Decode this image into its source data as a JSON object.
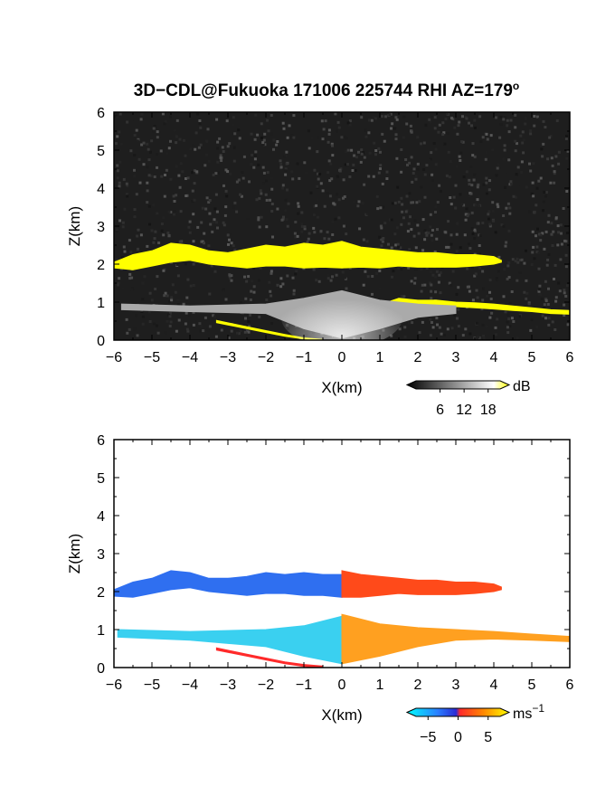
{
  "chart_data": [
    {
      "type": "heatmap",
      "title": "3D−CDL@Fukuoka 171006 225744 RHI AZ=179",
      "title_superscript": "o",
      "xlabel": "X(km)",
      "ylabel": "Z(km)",
      "xlim": [
        -6,
        6
      ],
      "ylim": [
        0,
        6
      ],
      "x_ticks": [
        "−6",
        "−5",
        "−4",
        "−3",
        "−2",
        "−1",
        "0",
        "1",
        "2",
        "3",
        "4",
        "5",
        "6"
      ],
      "y_ticks": [
        "0",
        "1",
        "2",
        "3",
        "4",
        "5",
        "6"
      ],
      "background_color": "#1e1e1e",
      "colorbar": {
        "unit": "dB",
        "ticks": [
          "6",
          "12",
          "18"
        ],
        "range": [
          0,
          21
        ],
        "colors": [
          "#000000",
          "#ffffff",
          "#ffff00"
        ]
      },
      "features": [
        {
          "name": "upper-layer",
          "value_db": 20,
          "color": "#ffff00",
          "top": [
            [
              -6,
              2.05
            ],
            [
              -5.5,
              2.25
            ],
            [
              -5,
              2.35
            ],
            [
              -4.5,
              2.55
            ],
            [
              -4,
              2.5
            ],
            [
              -3.5,
              2.35
            ],
            [
              -3,
              2.3
            ],
            [
              -2.5,
              2.4
            ],
            [
              -2,
              2.5
            ],
            [
              -1.5,
              2.45
            ],
            [
              -1,
              2.55
            ],
            [
              -0.5,
              2.5
            ],
            [
              0,
              2.6
            ],
            [
              0.5,
              2.45
            ],
            [
              1,
              2.4
            ],
            [
              1.5,
              2.35
            ],
            [
              2,
              2.3
            ],
            [
              2.5,
              2.3
            ],
            [
              3,
              2.25
            ],
            [
              3.5,
              2.25
            ],
            [
              4,
              2.2
            ],
            [
              4.2,
              2.1
            ]
          ],
          "bottom": [
            [
              4.2,
              2.05
            ],
            [
              4,
              2.0
            ],
            [
              3.5,
              1.95
            ],
            [
              3,
              1.92
            ],
            [
              2.5,
              1.92
            ],
            [
              2,
              1.92
            ],
            [
              1.5,
              1.95
            ],
            [
              1,
              1.9
            ],
            [
              0.5,
              1.92
            ],
            [
              0,
              1.9
            ],
            [
              -0.5,
              1.92
            ],
            [
              -1,
              1.9
            ],
            [
              -1.5,
              1.95
            ],
            [
              -2,
              1.95
            ],
            [
              -2.5,
              1.9
            ],
            [
              -3,
              1.95
            ],
            [
              -3.5,
              2.0
            ],
            [
              -4,
              2.1
            ],
            [
              -4.5,
              2.05
            ],
            [
              -5,
              1.95
            ],
            [
              -5.5,
              1.85
            ],
            [
              -6,
              1.9
            ]
          ]
        },
        {
          "name": "lower-layer-edge",
          "value_db": 20,
          "color": "#ffff00",
          "top": [
            [
              1.2,
              1.0
            ],
            [
              1.5,
              1.1
            ],
            [
              2,
              1.05
            ],
            [
              2.5,
              1.05
            ],
            [
              3,
              1.0
            ],
            [
              3.5,
              0.98
            ],
            [
              4,
              0.95
            ],
            [
              4.5,
              0.9
            ],
            [
              5,
              0.85
            ],
            [
              5.5,
              0.8
            ],
            [
              6,
              0.78
            ]
          ],
          "bottom": [
            [
              6,
              0.68
            ],
            [
              5.5,
              0.7
            ],
            [
              5,
              0.75
            ],
            [
              4.5,
              0.78
            ],
            [
              4,
              0.82
            ],
            [
              3.5,
              0.85
            ],
            [
              3,
              0.88
            ],
            [
              2.5,
              0.9
            ],
            [
              2,
              0.93
            ],
            [
              1.5,
              0.95
            ],
            [
              1.2,
              0.92
            ]
          ]
        },
        {
          "name": "surface-echo",
          "value_db": 18,
          "color": "#ffff00",
          "top": [
            [
              -3.3,
              0.52
            ],
            [
              -2.5,
              0.35
            ],
            [
              -2,
              0.25
            ],
            [
              -1.5,
              0.15
            ],
            [
              -1,
              0.06
            ],
            [
              -0.5,
              0.02
            ]
          ],
          "bottom": [
            [
              -0.5,
              0.0
            ],
            [
              -1,
              0.03
            ],
            [
              -1.5,
              0.1
            ],
            [
              -2,
              0.2
            ],
            [
              -2.5,
              0.3
            ],
            [
              -3.3,
              0.46
            ]
          ]
        },
        {
          "name": "lower-layer-gray",
          "value_db": 12,
          "color": "#aaaaaa",
          "top": [
            [
              -5.8,
              0.95
            ],
            [
              -4,
              0.9
            ],
            [
              -2,
              0.95
            ],
            [
              -1,
              1.1
            ],
            [
              0,
              1.3
            ],
            [
              1,
              1.05
            ],
            [
              2,
              0.95
            ],
            [
              3,
              0.9
            ]
          ],
          "bottom": [
            [
              3,
              0.7
            ],
            [
              2,
              0.6
            ],
            [
              1,
              0.3
            ],
            [
              0,
              0.05
            ],
            [
              -1,
              0.3
            ],
            [
              -2,
              0.7
            ],
            [
              -4,
              0.75
            ],
            [
              -5.8,
              0.8
            ]
          ]
        }
      ]
    },
    {
      "type": "heatmap",
      "xlabel": "X(km)",
      "ylabel": "Z(km)",
      "xlim": [
        -6,
        6
      ],
      "ylim": [
        0,
        6
      ],
      "x_ticks": [
        "−6",
        "−5",
        "−4",
        "−3",
        "−2",
        "−1",
        "0",
        "1",
        "2",
        "3",
        "4",
        "5",
        "6"
      ],
      "y_ticks": [
        "0",
        "1",
        "2",
        "3",
        "4",
        "5",
        "6"
      ],
      "background_color": "#ffffff",
      "colorbar": {
        "unit": "ms",
        "unit_superscript": "−1",
        "ticks": [
          "−5",
          "0",
          "5"
        ],
        "range": [
          -7,
          7
        ],
        "colors": [
          "#00ffff",
          "#2a7fff",
          "#2a2ad4",
          "#ff2a2a",
          "#ff8800",
          "#ffff00"
        ]
      },
      "features": [
        {
          "name": "upper-layer-left",
          "value_ms": -5,
          "color": "#2f6ff0",
          "top": [
            [
              -6,
              2.05
            ],
            [
              -5.5,
              2.25
            ],
            [
              -5,
              2.35
            ],
            [
              -4.5,
              2.55
            ],
            [
              -4,
              2.5
            ],
            [
              -3.5,
              2.35
            ],
            [
              -3,
              2.35
            ],
            [
              -2.5,
              2.4
            ],
            [
              -2,
              2.5
            ],
            [
              -1.5,
              2.45
            ],
            [
              -1,
              2.5
            ],
            [
              -0.5,
              2.45
            ],
            [
              0,
              2.45
            ]
          ],
          "bottom": [
            [
              0,
              1.85
            ],
            [
              -0.5,
              1.9
            ],
            [
              -1,
              1.9
            ],
            [
              -1.5,
              1.95
            ],
            [
              -2,
              1.95
            ],
            [
              -2.5,
              1.9
            ],
            [
              -3,
              1.95
            ],
            [
              -3.5,
              2.0
            ],
            [
              -4,
              2.1
            ],
            [
              -4.5,
              2.05
            ],
            [
              -5,
              1.95
            ],
            [
              -5.5,
              1.85
            ],
            [
              -6,
              1.88
            ]
          ]
        },
        {
          "name": "upper-layer-right",
          "value_ms": 3,
          "color": "#ff4a1a",
          "top": [
            [
              0,
              2.55
            ],
            [
              0.5,
              2.45
            ],
            [
              1,
              2.4
            ],
            [
              1.5,
              2.35
            ],
            [
              2,
              2.3
            ],
            [
              2.5,
              2.3
            ],
            [
              3,
              2.25
            ],
            [
              3.5,
              2.25
            ],
            [
              4,
              2.2
            ],
            [
              4.2,
              2.12
            ]
          ],
          "bottom": [
            [
              4.2,
              2.05
            ],
            [
              4,
              2.0
            ],
            [
              3.5,
              1.95
            ],
            [
              3,
              1.92
            ],
            [
              2.5,
              1.92
            ],
            [
              2,
              1.92
            ],
            [
              1.5,
              1.95
            ],
            [
              1,
              1.9
            ],
            [
              0.5,
              1.85
            ],
            [
              0,
              1.85
            ]
          ]
        },
        {
          "name": "lower-layer-left",
          "value_ms": -6,
          "color": "#3ad0f0",
          "top": [
            [
              -5.9,
              1.0
            ],
            [
              -4,
              0.95
            ],
            [
              -2,
              1.0
            ],
            [
              -1,
              1.1
            ],
            [
              0,
              1.35
            ]
          ],
          "bottom": [
            [
              0,
              0.1
            ],
            [
              -1,
              0.3
            ],
            [
              -2,
              0.55
            ],
            [
              -4,
              0.72
            ],
            [
              -5.9,
              0.8
            ]
          ]
        },
        {
          "name": "lower-layer-right",
          "value_ms": 4,
          "color": "#ffa020",
          "top": [
            [
              0,
              1.4
            ],
            [
              1,
              1.15
            ],
            [
              2,
              1.05
            ],
            [
              3,
              1.0
            ],
            [
              4,
              0.95
            ],
            [
              5,
              0.88
            ],
            [
              6,
              0.82
            ]
          ],
          "bottom": [
            [
              6,
              0.68
            ],
            [
              5,
              0.72
            ],
            [
              4,
              0.75
            ],
            [
              3,
              0.72
            ],
            [
              2,
              0.55
            ],
            [
              1,
              0.3
            ],
            [
              0,
              0.1
            ]
          ]
        },
        {
          "name": "surface-echo-left",
          "value_ms": -1,
          "color": "#ff2a2a",
          "top": [
            [
              -3.3,
              0.52
            ],
            [
              -2.5,
              0.35
            ],
            [
              -2,
              0.25
            ],
            [
              -1.5,
              0.15
            ],
            [
              -1,
              0.08
            ],
            [
              -0.5,
              0.04
            ]
          ],
          "bottom": [
            [
              -0.5,
              0.0
            ],
            [
              -1,
              0.03
            ],
            [
              -1.5,
              0.1
            ],
            [
              -2,
              0.2
            ],
            [
              -2.5,
              0.3
            ],
            [
              -3.3,
              0.46
            ]
          ]
        }
      ]
    }
  ]
}
